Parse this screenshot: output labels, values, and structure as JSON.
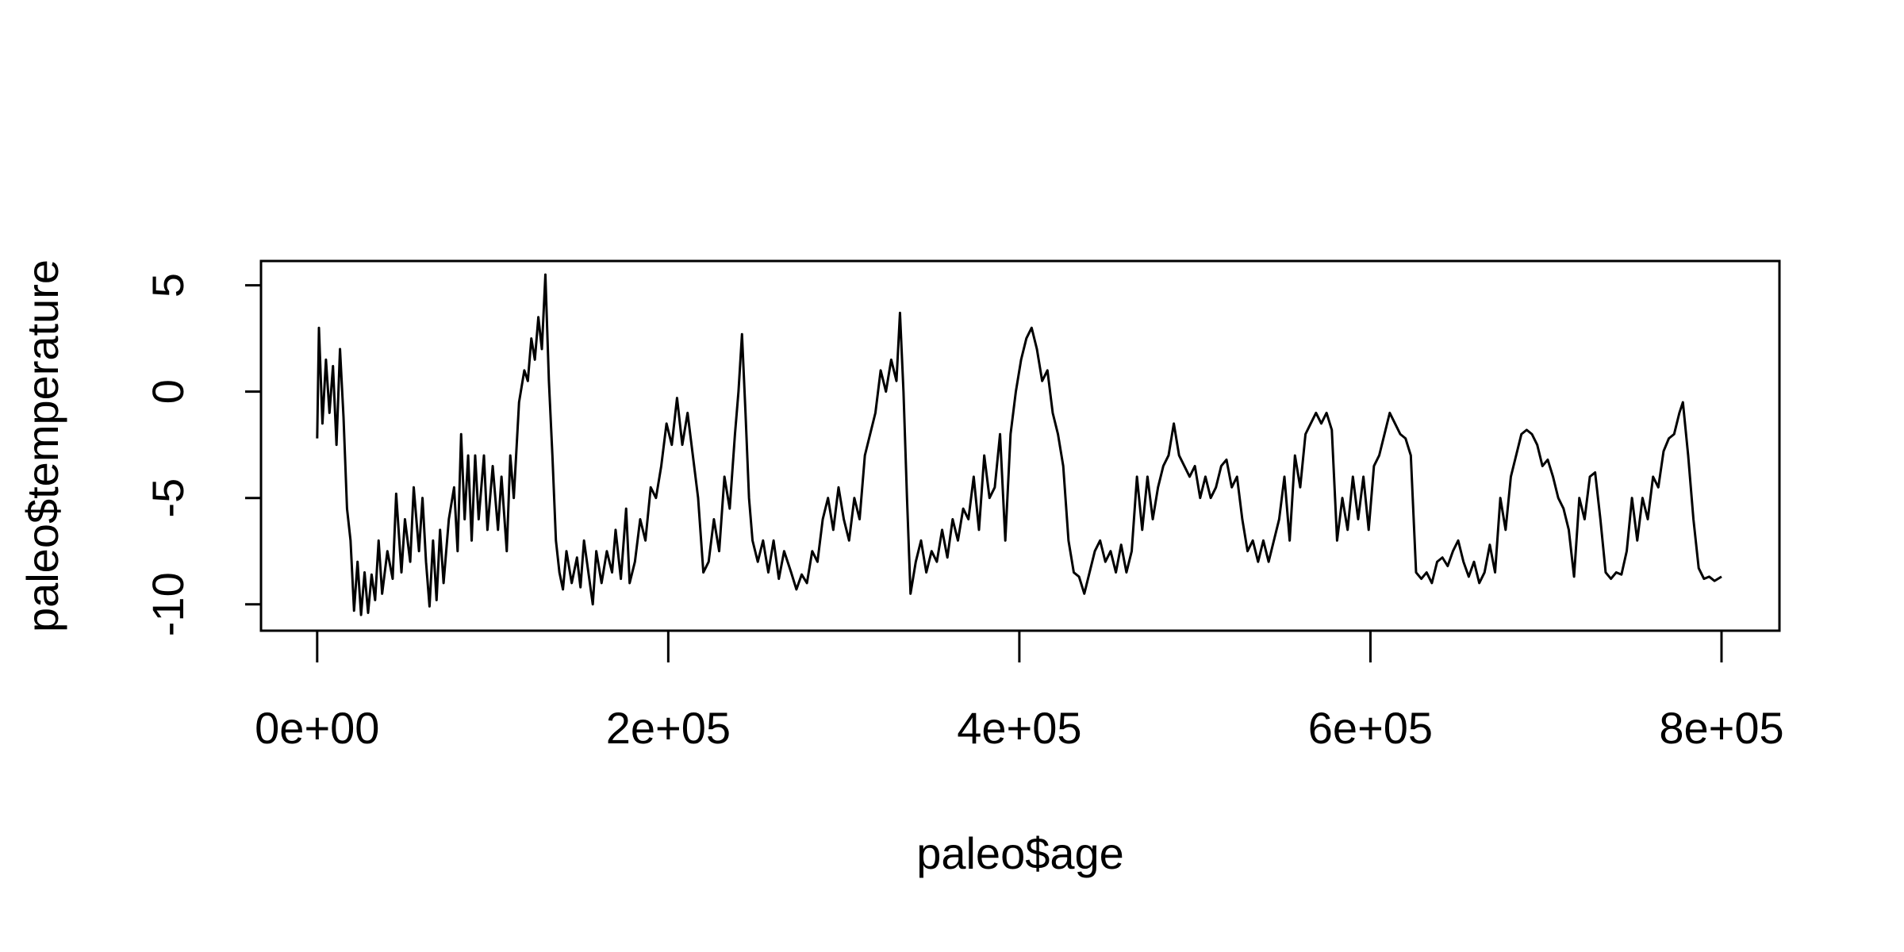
{
  "chart_data": {
    "type": "line",
    "x_label": "paleo$age",
    "y_label": "paleo$temperature",
    "color": "#000000",
    "xlim": [
      -32000,
      833000
    ],
    "ylim": [
      -11.24,
      6.14
    ],
    "xticks": [
      {
        "value": 0,
        "label": "0e+00"
      },
      {
        "value": 200000,
        "label": "2e+05"
      },
      {
        "value": 400000,
        "label": "4e+05"
      },
      {
        "value": 600000,
        "label": "6e+05"
      },
      {
        "value": 800000,
        "label": "8e+05"
      }
    ],
    "yticks": [
      -10,
      -5,
      0,
      5
    ],
    "x": [
      0,
      1000,
      3000,
      5000,
      7000,
      9000,
      11000,
      13000,
      15000,
      17000,
      19000,
      21000,
      23000,
      25000,
      27000,
      29000,
      31000,
      33000,
      35000,
      37000,
      40000,
      43000,
      45000,
      48000,
      50000,
      53000,
      55000,
      58000,
      60000,
      62000,
      64000,
      66000,
      68000,
      70000,
      72000,
      75000,
      78000,
      80000,
      82000,
      84000,
      86000,
      88000,
      90000,
      92000,
      95000,
      97000,
      100000,
      103000,
      105000,
      108000,
      110000,
      112000,
      115000,
      118000,
      120000,
      122000,
      124000,
      126000,
      128000,
      130000,
      132000,
      134000,
      136000,
      138000,
      140000,
      142000,
      145000,
      148000,
      150000,
      152000,
      155000,
      157000,
      159000,
      162000,
      165000,
      168000,
      170000,
      173000,
      176000,
      178000,
      181000,
      184000,
      187000,
      190000,
      193000,
      196000,
      199000,
      202000,
      205000,
      208000,
      211000,
      214000,
      217000,
      220000,
      223000,
      226000,
      229000,
      232000,
      235000,
      238000,
      240000,
      242000,
      244000,
      246000,
      248000,
      251000,
      254000,
      257000,
      260000,
      263000,
      266000,
      270000,
      273000,
      276000,
      279000,
      282000,
      285000,
      288000,
      291000,
      294000,
      297000,
      300000,
      303000,
      306000,
      309000,
      312000,
      315000,
      318000,
      321000,
      324000,
      327000,
      330000,
      332000,
      334000,
      336000,
      338000,
      341000,
      344000,
      347000,
      350000,
      353000,
      356000,
      359000,
      362000,
      365000,
      368000,
      371000,
      374000,
      377000,
      380000,
      383000,
      386000,
      389000,
      392000,
      395000,
      398000,
      401000,
      404000,
      407000,
      410000,
      413000,
      416000,
      419000,
      422000,
      425000,
      428000,
      431000,
      434000,
      437000,
      440000,
      443000,
      446000,
      449000,
      452000,
      455000,
      458000,
      461000,
      464000,
      467000,
      470000,
      473000,
      476000,
      479000,
      482000,
      485000,
      488000,
      491000,
      494000,
      497000,
      500000,
      503000,
      506000,
      509000,
      512000,
      515000,
      518000,
      521000,
      524000,
      527000,
      530000,
      533000,
      536000,
      539000,
      542000,
      545000,
      548000,
      551000,
      554000,
      557000,
      560000,
      563000,
      566000,
      569000,
      572000,
      575000,
      578000,
      581000,
      584000,
      587000,
      590000,
      593000,
      596000,
      599000,
      602000,
      605000,
      608000,
      611000,
      614000,
      617000,
      620000,
      623000,
      626000,
      629000,
      632000,
      635000,
      638000,
      641000,
      644000,
      647000,
      650000,
      653000,
      656000,
      659000,
      662000,
      665000,
      668000,
      671000,
      674000,
      677000,
      680000,
      683000,
      686000,
      689000,
      692000,
      695000,
      698000,
      701000,
      704000,
      707000,
      710000,
      713000,
      716000,
      719000,
      722000,
      725000,
      728000,
      731000,
      734000,
      737000,
      740000,
      743000,
      746000,
      749000,
      752000,
      755000,
      758000,
      761000,
      764000,
      767000,
      770000,
      773000,
      776000,
      778000,
      781000,
      784000,
      787000,
      790000,
      793000,
      796000,
      800000
    ],
    "values": [
      -2.2,
      3,
      -1.5,
      1.5,
      -1,
      1.2,
      -2.5,
      2,
      -1.2,
      -5.5,
      -7,
      -10.3,
      -8,
      -10.5,
      -8.5,
      -10.4,
      -8.6,
      -9.8,
      -7,
      -9.5,
      -7.5,
      -8.8,
      -4.8,
      -8.5,
      -6,
      -8,
      -4.5,
      -7.5,
      -5,
      -8,
      -10.1,
      -7,
      -9.8,
      -6.5,
      -9,
      -6,
      -4.5,
      -7.5,
      -2,
      -6,
      -3,
      -7,
      -3,
      -6,
      -3,
      -6.5,
      -3.5,
      -6.5,
      -4,
      -7.5,
      -3,
      -5,
      -0.5,
      1,
      0.5,
      2.5,
      1.5,
      3.5,
      2,
      5.5,
      0.5,
      -3,
      -7,
      -8.5,
      -9.3,
      -7.5,
      -9,
      -7.8,
      -9.2,
      -7,
      -8.8,
      -10,
      -7.5,
      -9,
      -7.5,
      -8.5,
      -6.5,
      -8.8,
      -5.5,
      -9,
      -8,
      -6,
      -7,
      -4.5,
      -5,
      -3.5,
      -1.5,
      -2.5,
      -0.3,
      -2.5,
      -1,
      -3,
      -5,
      -8.5,
      -8,
      -6,
      -7.5,
      -4,
      -5.5,
      -2,
      0,
      2.7,
      -1,
      -5,
      -7,
      -8,
      -7,
      -8.5,
      -7,
      -8.8,
      -7.5,
      -8.5,
      -9.3,
      -8.6,
      -9,
      -7.5,
      -8,
      -6,
      -5,
      -6.5,
      -4.5,
      -6,
      -7,
      -5,
      -6,
      -3,
      -2,
      -1,
      1,
      0,
      1.5,
      0.5,
      3.7,
      0,
      -5,
      -9.5,
      -8,
      -7,
      -8.5,
      -7.5,
      -8,
      -6.5,
      -7.8,
      -6,
      -7,
      -5.5,
      -6,
      -4,
      -6.5,
      -3,
      -5,
      -4.5,
      -2,
      -7,
      -2,
      0,
      1.5,
      2.5,
      3,
      2,
      0.5,
      1,
      -1,
      -2,
      -3.5,
      -7,
      -8.5,
      -8.7,
      -9.5,
      -8.5,
      -7.5,
      -7,
      -8,
      -7.5,
      -8.5,
      -7.2,
      -8.5,
      -7.5,
      -4,
      -6.5,
      -4,
      -6,
      -4.5,
      -3.5,
      -3,
      -1.5,
      -3,
      -3.5,
      -4,
      -3.5,
      -5,
      -4,
      -5,
      -4.5,
      -3.5,
      -3.2,
      -4.5,
      -4,
      -6,
      -7.5,
      -7,
      -8,
      -7,
      -8,
      -7,
      -6,
      -4,
      -7,
      -3,
      -4.5,
      -2,
      -1.5,
      -1,
      -1.5,
      -1,
      -1.8,
      -7,
      -5,
      -6.5,
      -4,
      -6,
      -4,
      -6.5,
      -3.5,
      -3,
      -2,
      -1,
      -1.5,
      -2,
      -2.2,
      -3,
      -8.5,
      -8.8,
      -8.5,
      -9,
      -8,
      -7.8,
      -8.2,
      -7.5,
      -7,
      -8,
      -8.7,
      -8,
      -9,
      -8.5,
      -7.2,
      -8.5,
      -5,
      -6.5,
      -4,
      -3,
      -2,
      -1.8,
      -2,
      -2.5,
      -3.5,
      -3.2,
      -4,
      -5,
      -5.5,
      -6.5,
      -8.7,
      -5,
      -6,
      -4,
      -3.8,
      -6,
      -8.5,
      -8.8,
      -8.5,
      -8.6,
      -7.5,
      -5,
      -7,
      -5,
      -6,
      -4,
      -4.5,
      -2.8,
      -2.2,
      -2,
      -1,
      -0.5,
      -3,
      -6,
      -8.3,
      -8.8,
      -8.7,
      -8.9,
      -8.7
    ]
  }
}
